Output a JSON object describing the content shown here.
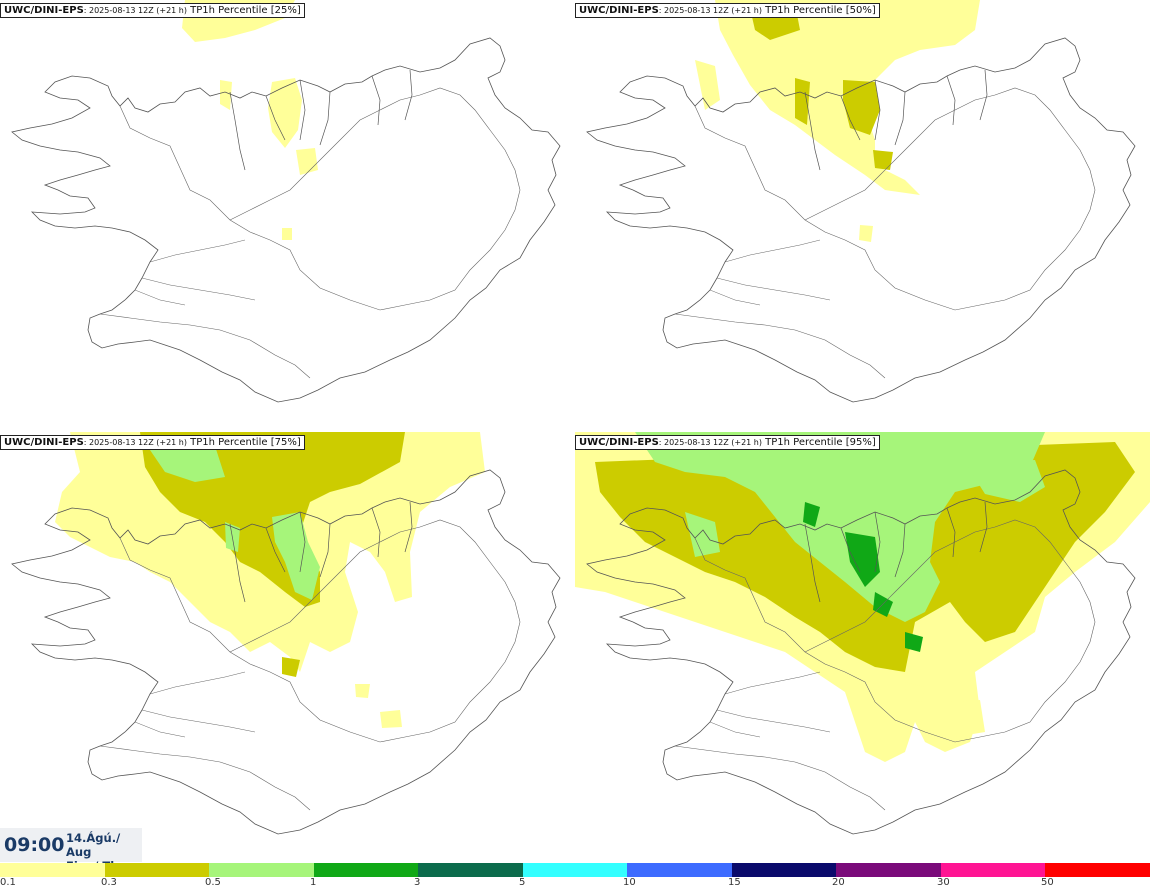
{
  "panels": [
    {
      "model": "UWC/DINI-EPS",
      "run": ": 2025-08-13 12Z (+21 h)",
      "product": " TP1h Percentile [25%]"
    },
    {
      "model": "UWC/DINI-EPS",
      "run": ": 2025-08-13 12Z (+21 h)",
      "product": " TP1h Percentile [50%]"
    },
    {
      "model": "UWC/DINI-EPS",
      "run": ": 2025-08-13 12Z (+21 h)",
      "product": " TP1h Percentile [75%]"
    },
    {
      "model": "UWC/DINI-EPS",
      "run": ": 2025-08-13 12Z (+21 h)",
      "product": " TP1h Percentile [95%]"
    }
  ],
  "valid_time": {
    "time": "09:00",
    "date_line1": "14.Ágú./ Aug",
    "date_line2": "Fim./ Thu"
  },
  "legend": {
    "colors": [
      "#ffff99",
      "#cccc00",
      "#a6f57a",
      "#10a816",
      "#0b6b4c",
      "#33ffff",
      "#3d6bff",
      "#0a0a6b",
      "#7a0a7a",
      "#ff1493",
      "#ff0000"
    ],
    "ticks": [
      "0.1",
      "0.3",
      "0.5",
      "1",
      "3",
      "5",
      "10",
      "15",
      "20",
      "30",
      "50"
    ]
  },
  "colors": {
    "light_yellow": "#ffff99",
    "olive": "#cccc00",
    "light_green": "#a6f57a",
    "green": "#10a816",
    "dark_green": "#0b6b4c"
  }
}
